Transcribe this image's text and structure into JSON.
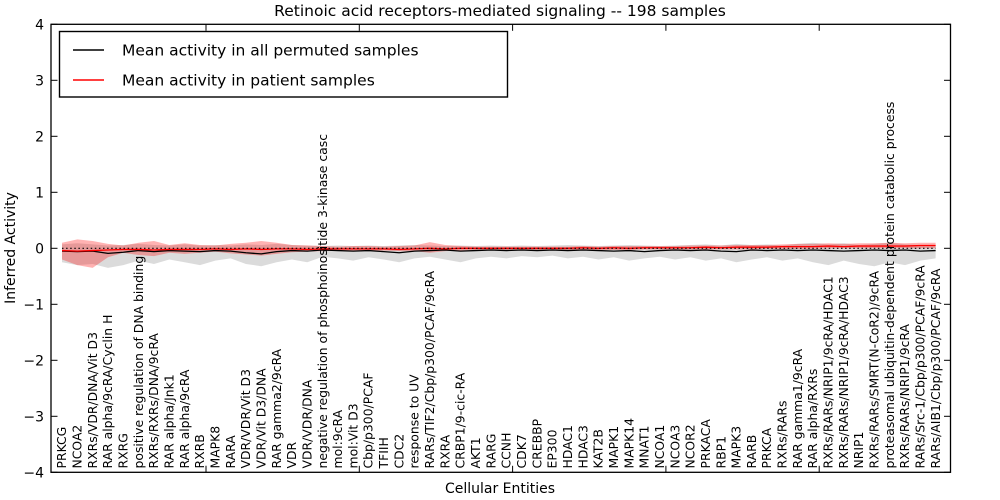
{
  "figure": {
    "title": "Retinoic acid receptors-mediated signaling -- 198 samples",
    "xlabel": "Cellular Entities",
    "ylabel": "Inferred Activity"
  },
  "legend": {
    "items": [
      {
        "label": "Mean activity in all permuted samples",
        "color": "#000000"
      },
      {
        "label": "Mean activity in patient samples",
        "color": "#ff0000"
      }
    ]
  },
  "chart_data": {
    "type": "line",
    "title": "Retinoic acid receptors-mediated signaling -- 198 samples",
    "xlabel": "Cellular Entities",
    "ylabel": "Inferred Activity",
    "ylim": [
      -4,
      4
    ],
    "yticks": [
      -4,
      -3,
      -2,
      -1,
      0,
      1,
      2,
      3,
      4
    ],
    "grid": false,
    "legend_position": "upper left",
    "reference_line": {
      "y": 0,
      "style": "dotted",
      "color": "#000000"
    },
    "categories": [
      "PRKCG",
      "NCOA2",
      "RXRs/VDR/DNA/Vit D3",
      "RAR alpha/9cRA/Cyclin H",
      "RXRG",
      "positive regulation of DNA binding",
      "RXRs/RXRs/DNA/9cRA",
      "RAR alpha/Jnk1",
      "RAR alpha/9cRA",
      "RXRB",
      "MAPK8",
      "RARA",
      "VDR/VDR/Vit D3",
      "VDR/Vit D3/DNA",
      "RAR gamma2/9cRA",
      "VDR",
      "VDR/VDR/DNA",
      "negative regulation of phosphoinositide 3-kinase casc",
      "mol:9cRA",
      "mol:Vit D3",
      "Cbp/p300/PCAF",
      "TFIIH",
      "CDC2",
      "response to UV",
      "RARs/TIF2/Cbp/p300/PCAF/9cRA",
      "RXRA",
      "CRBP1/9-cic-RA",
      "AKT1",
      "RARG",
      "CCNH",
      "CDK7",
      "CREBBP",
      "EP300",
      "HDAC1",
      "HDAC3",
      "KAT2B",
      "MAPK1",
      "MAPK14",
      "MNAT1",
      "NCOA1",
      "NCOA3",
      "NCOR2",
      "PRKACA",
      "RBP1",
      "MAPK3",
      "RARB",
      "PRKCA",
      "RXRs/RARs",
      "RAR gamma1/9cRA",
      "RAR alpha/RXRs",
      "RXRs/RARs/NRIP1/9cRA/HDAC1",
      "RXRs/RARs/NRIP1/9cRA/HDAC3",
      "NRIP1",
      "RXRs/RARs/SMRT(N-CoR2)/9cRA",
      "proteasomal ubiquitin-dependent protein catabolic process",
      "RXRs/RARs/NRIP1/9cRA",
      "RARs/Src-1/Cbp/p300/PCAF/9cRA",
      "RARs/AIB1/Cbp/p300/PCAF/9cRA"
    ],
    "series": [
      {
        "name": "Mean activity in all permuted samples",
        "color": "#000000",
        "style": "solid",
        "values": [
          -0.05,
          -0.06,
          -0.05,
          -0.09,
          -0.07,
          -0.04,
          -0.06,
          -0.04,
          -0.05,
          -0.06,
          -0.04,
          -0.05,
          -0.08,
          -0.1,
          -0.06,
          -0.04,
          -0.05,
          -0.03,
          -0.04,
          -0.05,
          -0.04,
          -0.06,
          -0.08,
          -0.05,
          -0.04,
          -0.03,
          -0.05,
          -0.04,
          -0.03,
          -0.04,
          -0.03,
          -0.04,
          -0.03,
          -0.04,
          -0.03,
          -0.04,
          -0.05,
          -0.04,
          -0.06,
          -0.04,
          -0.03,
          -0.04,
          -0.03,
          -0.05,
          -0.06,
          -0.03,
          -0.04,
          -0.03,
          -0.04,
          -0.03,
          -0.04,
          -0.05,
          -0.04,
          -0.03,
          -0.04,
          -0.03,
          -0.05,
          -0.04
        ]
      },
      {
        "name": "Mean activity in patient samples",
        "color": "#ff0000",
        "style": "solid",
        "values": [
          -0.04,
          -0.05,
          -0.04,
          -0.03,
          -0.02,
          -0.02,
          -0.03,
          -0.02,
          -0.02,
          -0.02,
          -0.01,
          -0.02,
          -0.01,
          -0.02,
          -0.01,
          -0.01,
          -0.02,
          -0.01,
          -0.01,
          -0.01,
          -0.01,
          -0.01,
          -0.02,
          -0.01,
          0,
          -0.01,
          0,
          0,
          0,
          0,
          0,
          0,
          0,
          0,
          0.01,
          0,
          0.01,
          0,
          0.01,
          0.01,
          0.01,
          0.01,
          0.02,
          0.01,
          0.02,
          0.02,
          0.02,
          0.03,
          0.03,
          0.03,
          0.04,
          0.03,
          0.04,
          0.04,
          0.04,
          0.04,
          0.05,
          0.05
        ]
      }
    ],
    "bands": [
      {
        "name": "permuted samples range",
        "color": "#999999",
        "opacity": 0.35,
        "upper": [
          0.07,
          0.09,
          0.07,
          0.05,
          0.06,
          0.08,
          0.06,
          0.05,
          0.07,
          0.05,
          0.06,
          0.05,
          0.07,
          0.06,
          0.08,
          0.06,
          0.05,
          0.04,
          0.05,
          0.04,
          0.05,
          0.04,
          0.05,
          0.06,
          0.05,
          0.04,
          0.05,
          0.04,
          0.05,
          0.04,
          0.05,
          0.04,
          0.05,
          0.06,
          0.05,
          0.04,
          0.05,
          0.06,
          0.05,
          0.04,
          0.05,
          0.06,
          0.07,
          0.05,
          0.08,
          0.06,
          0.07,
          0.05,
          0.08,
          0.1,
          0.07,
          0.09,
          0.06,
          0.08,
          0.1,
          0.07,
          0.06,
          0.05
        ],
        "lower": [
          -0.25,
          -0.3,
          -0.28,
          -0.35,
          -0.3,
          -0.22,
          -0.28,
          -0.2,
          -0.25,
          -0.3,
          -0.22,
          -0.18,
          -0.28,
          -0.32,
          -0.25,
          -0.2,
          -0.25,
          -0.15,
          -0.18,
          -0.22,
          -0.16,
          -0.2,
          -0.25,
          -0.18,
          -0.15,
          -0.2,
          -0.25,
          -0.18,
          -0.15,
          -0.18,
          -0.14,
          -0.16,
          -0.13,
          -0.18,
          -0.15,
          -0.2,
          -0.16,
          -0.22,
          -0.18,
          -0.15,
          -0.2,
          -0.16,
          -0.22,
          -0.18,
          -0.25,
          -0.2,
          -0.16,
          -0.22,
          -0.18,
          -0.25,
          -0.3,
          -0.22,
          -0.28,
          -0.32,
          -0.25,
          -0.3,
          -0.22,
          -0.18
        ]
      },
      {
        "name": "patient samples range",
        "color": "#ff0000",
        "opacity": 0.3,
        "upper": [
          0.1,
          0.16,
          0.13,
          0.08,
          0.05,
          0.1,
          0.13,
          0.06,
          0.09,
          0.06,
          0.05,
          0.08,
          0.1,
          0.13,
          0.1,
          0.06,
          0.05,
          0.04,
          0.03,
          0.04,
          0.04,
          0.03,
          0.04,
          0.05,
          0.11,
          0.06,
          0.04,
          0.03,
          0.03,
          0.03,
          0.03,
          0.03,
          0.03,
          0.03,
          0.04,
          0.03,
          0.04,
          0.04,
          0.04,
          0.04,
          0.04,
          0.05,
          0.05,
          0.05,
          0.06,
          0.06,
          0.06,
          0.07,
          0.08,
          0.08,
          0.09,
          0.08,
          0.09,
          0.09,
          0.1,
          0.09,
          0.1,
          0.1
        ],
        "lower": [
          -0.2,
          -0.3,
          -0.35,
          -0.16,
          -0.08,
          -0.12,
          -0.14,
          -0.08,
          -0.1,
          -0.08,
          -0.06,
          -0.09,
          -0.11,
          -0.13,
          -0.1,
          -0.07,
          -0.06,
          -0.05,
          -0.04,
          -0.04,
          -0.05,
          -0.04,
          -0.05,
          -0.05,
          -0.08,
          -0.05,
          -0.04,
          -0.03,
          -0.03,
          -0.03,
          -0.03,
          -0.03,
          -0.03,
          -0.03,
          -0.03,
          -0.03,
          -0.03,
          -0.03,
          -0.02,
          -0.02,
          -0.02,
          -0.02,
          -0.02,
          -0.02,
          -0.02,
          -0.02,
          -0.01,
          -0.01,
          -0.01,
          -0.01,
          0,
          0,
          0,
          0,
          0,
          0,
          0,
          0
        ]
      }
    ]
  }
}
